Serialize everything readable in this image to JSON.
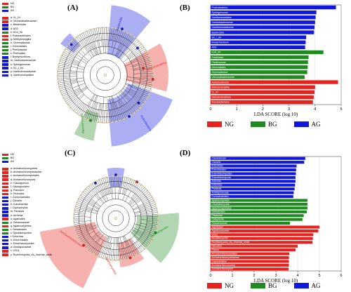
{
  "panels": {
    "A": "(A)",
    "B": "(B)",
    "C": "(C)",
    "D": "(D)"
  },
  "colors": {
    "NG": "#e8211c",
    "BG": "#1f8a1f",
    "AG": "#1018e0"
  },
  "groups": [
    "NG",
    "BG",
    "AG"
  ],
  "legend_a": {
    "groups": [
      "NG",
      "BG",
      "AG"
    ],
    "items": [
      {
        "text": "a: 11_24",
        "c": "NG"
      },
      {
        "text": "b: Vicinamibacteraceae",
        "c": "NG"
      },
      {
        "text": "c: Bacteroidia",
        "c": "AG"
      },
      {
        "text": "d: AD3",
        "c": "AG"
      },
      {
        "text": "e: KD4_96",
        "c": "BG"
      },
      {
        "text": "f: Rokubacteriales",
        "c": "NG"
      },
      {
        "text": "g: Methyloniragilia",
        "c": "NG"
      },
      {
        "text": "h: Gemmataceae",
        "c": "BG"
      },
      {
        "text": "i: Gemmatales",
        "c": "BG"
      },
      {
        "text": "j: Pirellulaceae",
        "c": "BG"
      },
      {
        "text": "k: Pirellulales",
        "c": "BG"
      },
      {
        "text": "l: Bradyrhizobium",
        "c": "AG"
      },
      {
        "text": "m: Xanthobacteraceae",
        "c": "AG"
      },
      {
        "text": "n: Sphingomonas",
        "c": "AG"
      },
      {
        "text": "o: SC_I_84",
        "c": "AG"
      },
      {
        "text": "p: Xanthomonadaceae",
        "c": "AG"
      },
      {
        "text": "q: Xanthomonadales",
        "c": "AG"
      }
    ]
  },
  "legend_c": {
    "groups": [
      "NG",
      "BG",
      "AG"
    ],
    "items": [
      {
        "text": "a: Archaeorhizomycetes",
        "c": "NG"
      },
      {
        "text": "b: Archaeorhizomycetaceae",
        "c": "NG"
      },
      {
        "text": "c: Archaeorhizomycetales",
        "c": "NG"
      },
      {
        "text": "d: Archaeorhizomyces",
        "c": "NG"
      },
      {
        "text": "e: Cladosporium",
        "c": "NG"
      },
      {
        "text": "f: Cladosporiales",
        "c": "NG"
      },
      {
        "text": "g: Flavodon",
        "c": "NG"
      },
      {
        "text": "h: Pezizales",
        "c": "NG"
      },
      {
        "text": "i: Coniochaetales",
        "c": "AG"
      },
      {
        "text": "j: Clavaria",
        "c": "AG"
      },
      {
        "text": "k: Clavariaceae",
        "c": "AG"
      },
      {
        "text": "l: Cuphophyllus",
        "c": "AG"
      },
      {
        "text": "m: Parasola",
        "c": "AG"
      },
      {
        "text": "n: Arrhenia",
        "c": "AG"
      },
      {
        "text": "o: Agaricales",
        "c": "NG"
      },
      {
        "text": "p: Sebacinaceae",
        "c": "BG"
      },
      {
        "text": "q: Agaricomycetes",
        "c": "NG"
      },
      {
        "text": "r: Sebacinales",
        "c": "BG"
      },
      {
        "text": "s: Spizellomycetes",
        "c": "BG"
      },
      {
        "text": "t: Entorhiza",
        "c": "AG"
      },
      {
        "text": "u: Entorrhizales",
        "c": "AG"
      },
      {
        "text": "v: Entorrhizomycetes",
        "c": "AG"
      },
      {
        "text": "w: Ambisporaceae",
        "c": "AG"
      },
      {
        "text": "x: GS11",
        "c": "NG"
      },
      {
        "text": "y: Rozellomycota_cls_Incertae_sedis",
        "c": "NG"
      }
    ]
  },
  "cladogram_a": {
    "labels": [
      {
        "text": "Bacteroidia",
        "c": "AG"
      },
      {
        "text": "Methylomirabilia",
        "c": "NG"
      },
      {
        "text": "Proteobacteria",
        "c": "AG"
      },
      {
        "text": "Planctomycetes",
        "c": "BG"
      }
    ]
  },
  "cladogram_c": {
    "labels": [
      {
        "text": "Archaeorhizomycetes",
        "c": "NG"
      },
      {
        "text": "Agaricomycetes",
        "c": "NG"
      },
      {
        "text": "Spizellomycetes",
        "c": "BG"
      }
    ]
  },
  "chart_data": [
    {
      "type": "bar",
      "panel": "B",
      "orientation": "horizontal",
      "xlabel": "LDA SCORE (log 10)",
      "xlim": [
        0,
        5
      ],
      "xticks": [
        0,
        1,
        2,
        3,
        4,
        5
      ],
      "categories": [
        "Proteobacteria",
        "Sphingomonas",
        "Xanthomonadales",
        "Xanthobacteraceae",
        "Xanthomonadaceae",
        "Bacteroidia",
        "SC_I_84",
        "Bradyrhizobium",
        "AD3",
        "KD4_96",
        "Pirellulales",
        "Pirellulaceae",
        "Gemmatales",
        "Gemmataceae",
        "Vicinamibacteraceae",
        "Acidobacteriota",
        "Methylomirabilia",
        "11_24",
        "Methylomirabilota",
        "Rokubacteriales"
      ],
      "values": [
        4.8,
        4.05,
        4.02,
        4.0,
        3.98,
        3.96,
        3.66,
        3.64,
        3.62,
        4.32,
        3.75,
        3.73,
        3.72,
        3.7,
        3.6,
        4.88,
        4.0,
        3.98,
        3.95,
        3.92
      ],
      "groups": [
        "AG",
        "AG",
        "AG",
        "AG",
        "AG",
        "AG",
        "AG",
        "AG",
        "AG",
        "BG",
        "BG",
        "BG",
        "BG",
        "BG",
        "BG",
        "NG",
        "NG",
        "NG",
        "NG",
        "NG"
      ]
    },
    {
      "type": "bar",
      "panel": "D",
      "orientation": "horizontal",
      "xlabel": "LDA SCORE (log 10)",
      "xlim": [
        0,
        6
      ],
      "xticks": [
        0,
        1,
        2,
        3,
        4,
        5,
        6
      ],
      "categories": [
        "Clavariaceae",
        "Clavaria",
        "Entorrhiza",
        "Entorrhizales",
        "Entorrhizomycetes",
        "Entorrhizomycota",
        "Arrhenia",
        "Entorhiza",
        "Parasola",
        "Ambisporaceae",
        "Coniochaetales",
        "Spizellomycetes",
        "Chytridiomycota",
        "Spizellomycetales",
        "Sebacinales",
        "Fabaceae",
        "Catapheria",
        "Sebacinaceae",
        "Agaricales",
        "Agaricomycetes",
        "GS11",
        "Rozellomycota",
        "Rozellomycota_cls_Incertae_sedis",
        "Flavodon",
        "Peziza",
        "Archaeorhizomycetales",
        "Archaeorhizomycetaceae",
        "Cuphophyllus",
        "Archaeorhizomycetes",
        "Archaeorhizomyces"
      ],
      "values": [
        4.35,
        4.3,
        3.95,
        3.93,
        3.92,
        3.9,
        3.9,
        3.88,
        3.86,
        3.82,
        3.8,
        4.45,
        4.45,
        4.45,
        4.42,
        4.28,
        4.22,
        3.65,
        5.0,
        4.95,
        4.72,
        4.7,
        4.68,
        4.0,
        3.9,
        3.62,
        3.6,
        3.6,
        3.6,
        3.58
      ],
      "groups": [
        "AG",
        "AG",
        "AG",
        "AG",
        "AG",
        "AG",
        "AG",
        "AG",
        "AG",
        "AG",
        "AG",
        "BG",
        "BG",
        "BG",
        "BG",
        "BG",
        "BG",
        "BG",
        "NG",
        "NG",
        "NG",
        "NG",
        "NG",
        "NG",
        "NG",
        "NG",
        "NG",
        "NG",
        "NG",
        "NG"
      ]
    }
  ]
}
